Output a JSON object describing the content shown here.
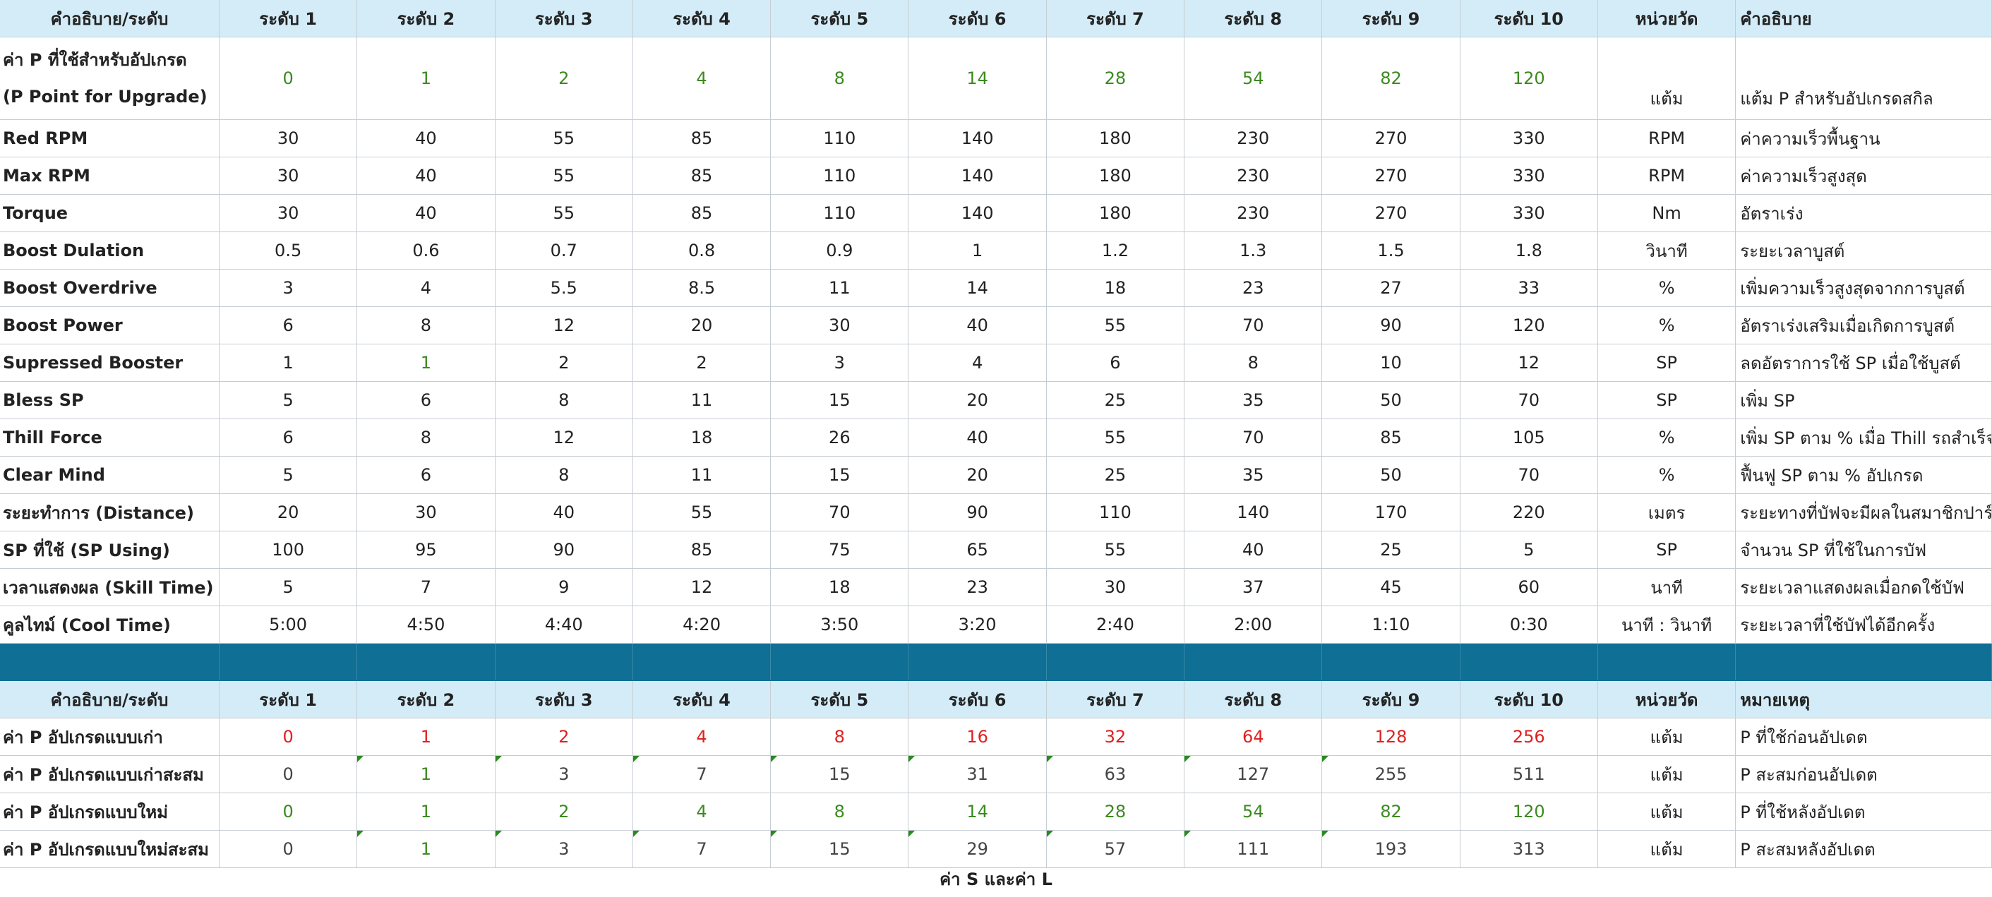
{
  "table1": {
    "headers": [
      "คำอธิบาย/ระดับ",
      "ระดับ 1",
      "ระดับ 2",
      "ระดับ 3",
      "ระดับ 4",
      "ระดับ 5",
      "ระดับ 6",
      "ระดับ 7",
      "ระดับ 8",
      "ระดับ 9",
      "ระดับ 10",
      "หน่วยวัด",
      "คำอธิบาย"
    ],
    "p_row": {
      "label_line1": "ค่า P ที่ใช้สำหรับอัปเกรด",
      "label_line2": "(P Point for Upgrade)",
      "values": [
        "0",
        "1",
        "2",
        "4",
        "8",
        "14",
        "28",
        "54",
        "82",
        "120"
      ],
      "unit": "แต้ม",
      "desc": "แต้ม P สำหรับอัปเกรดสกิล"
    },
    "rows": [
      {
        "label": "Red RPM",
        "values": [
          "30",
          "40",
          "55",
          "85",
          "110",
          "140",
          "180",
          "230",
          "270",
          "330"
        ],
        "unit": "RPM",
        "desc": "ค่าความเร็วพื้นฐาน"
      },
      {
        "label": "Max RPM",
        "values": [
          "30",
          "40",
          "55",
          "85",
          "110",
          "140",
          "180",
          "230",
          "270",
          "330"
        ],
        "unit": "RPM",
        "desc": "ค่าความเร็วสูงสุด"
      },
      {
        "label": "Torque",
        "values": [
          "30",
          "40",
          "55",
          "85",
          "110",
          "140",
          "180",
          "230",
          "270",
          "330"
        ],
        "unit": "Nm",
        "desc": "อัตราเร่ง"
      },
      {
        "label": "Boost Dulation",
        "values": [
          "0.5",
          "0.6",
          "0.7",
          "0.8",
          "0.9",
          "1",
          "1.2",
          "1.3",
          "1.5",
          "1.8"
        ],
        "unit": "วินาที",
        "desc": "ระยะเวลาบูสต์"
      },
      {
        "label": "Boost Overdrive",
        "values": [
          "3",
          "4",
          "5.5",
          "8.5",
          "11",
          "14",
          "18",
          "23",
          "27",
          "33"
        ],
        "unit": "%",
        "desc": "เพิ่มความเร็วสูงสุดจากการบูสต์"
      },
      {
        "label": "Boost Power",
        "values": [
          "6",
          "8",
          "12",
          "20",
          "30",
          "40",
          "55",
          "70",
          "90",
          "120"
        ],
        "unit": "%",
        "desc": "อัตราเร่งเสริมเมื่อเกิดการบูสต์"
      },
      {
        "label": "Supressed Booster",
        "values": [
          "1",
          "1",
          "2",
          "2",
          "3",
          "4",
          "6",
          "8",
          "10",
          "12"
        ],
        "unit": "SP",
        "desc": "ลดอัตราการใช้ SP เมื่อใช้บูสต์"
      },
      {
        "label": "Bless SP",
        "values": [
          "5",
          "6",
          "8",
          "11",
          "15",
          "20",
          "25",
          "35",
          "50",
          "70"
        ],
        "unit": "SP",
        "desc": "เพิ่ม SP"
      },
      {
        "label": "Thill Force",
        "values": [
          "6",
          "8",
          "12",
          "18",
          "26",
          "40",
          "55",
          "70",
          "85",
          "105"
        ],
        "unit": "%",
        "desc": "เพิ่ม SP ตาม % เมื่อ Thill รถสำเร็จ"
      },
      {
        "label": "Clear Mind",
        "values": [
          "5",
          "6",
          "8",
          "11",
          "15",
          "20",
          "25",
          "35",
          "50",
          "70"
        ],
        "unit": "%",
        "desc": "ฟื้นฟู SP ตาม % อัปเกรด"
      },
      {
        "label": "ระยะทำการ (Distance)",
        "values": [
          "20",
          "30",
          "40",
          "55",
          "70",
          "90",
          "110",
          "140",
          "170",
          "220"
        ],
        "unit": "เมตร",
        "desc": "ระยะทางที่บัฟจะมีผลในสมาชิกปาร์ตี้"
      },
      {
        "label": "SP ที่ใช้ (SP Using)",
        "values": [
          "100",
          "95",
          "90",
          "85",
          "75",
          "65",
          "55",
          "40",
          "25",
          "5"
        ],
        "unit": "SP",
        "desc": "จำนวน SP ที่ใช้ในการบัฟ"
      },
      {
        "label": "เวลาแสดงผล (Skill Time)",
        "values": [
          "5",
          "7",
          "9",
          "12",
          "18",
          "23",
          "30",
          "37",
          "45",
          "60"
        ],
        "unit": "นาที",
        "desc": "ระยะเวลาแสดงผลเมื่อกดใช้บัฟ"
      },
      {
        "label": "คูลไทม์ (Cool Time)",
        "values": [
          "5:00",
          "4:50",
          "4:40",
          "4:20",
          "3:50",
          "3:20",
          "2:40",
          "2:00",
          "1:10",
          "0:30"
        ],
        "unit": "นาที : วินาที",
        "desc": "ระยะเวลาที่ใช้บัฟได้อีกครั้ง"
      }
    ]
  },
  "table2": {
    "headers": [
      "คำอธิบาย/ระดับ",
      "ระดับ 1",
      "ระดับ 2",
      "ระดับ 3",
      "ระดับ 4",
      "ระดับ 5",
      "ระดับ 6",
      "ระดับ 7",
      "ระดับ 8",
      "ระดับ 9",
      "ระดับ 10",
      "หน่วยวัด",
      "หมายเหตุ"
    ],
    "rows": [
      {
        "label": "ค่า P อัปเกรดแบบเก่า",
        "values": [
          "0",
          "1",
          "2",
          "4",
          "8",
          "16",
          "32",
          "64",
          "128",
          "256"
        ],
        "unit": "แต้ม",
        "desc": "P ที่ใช้ก่อนอัปเดต",
        "color": "#e02020"
      },
      {
        "label": "ค่า P อัปเกรดแบบเก่าสะสม",
        "values": [
          "0",
          "1",
          "3",
          "7",
          "15",
          "31",
          "63",
          "127",
          "255",
          "511"
        ],
        "unit": "แต้ม",
        "desc": "P สะสมก่อนอัปเดต",
        "color": "#444444"
      },
      {
        "label": "ค่า P อัปเกรดแบบใหม่",
        "values": [
          "0",
          "1",
          "2",
          "4",
          "8",
          "14",
          "28",
          "54",
          "82",
          "120"
        ],
        "unit": "แต้ม",
        "desc": "P ที่ใช้หลังอัปเดต",
        "color": "#3b8a1f"
      },
      {
        "label": "ค่า P อัปเกรดแบบใหม่สะสม",
        "values": [
          "0",
          "1",
          "3",
          "7",
          "15",
          "29",
          "57",
          "111",
          "193",
          "313"
        ],
        "unit": "แต้ม",
        "desc": "P สะสมหลังอัปเดต",
        "color": "#444444"
      }
    ]
  },
  "footer": "ค่า S และค่า L",
  "colors": {
    "header_bg": "#d3ecf8",
    "separator": "#0f6f94",
    "green": "#3b8a1f",
    "red": "#e02020"
  }
}
